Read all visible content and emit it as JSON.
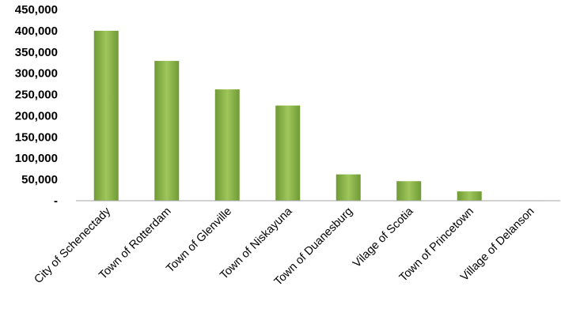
{
  "chart_data": {
    "type": "bar",
    "title": "",
    "xlabel": "",
    "ylabel": "",
    "categories": [
      "City of Schenectady",
      "Town of Rotterdam",
      "Town of Glenville",
      "Town of Niskayuna",
      "Town of Duanesburg",
      "Vilage of Scotia",
      "Town of Princetown",
      "Village of Delanson"
    ],
    "values": [
      400000,
      329000,
      262000,
      224000,
      62000,
      46000,
      22000,
      1000
    ],
    "ylim": [
      0,
      450000
    ],
    "yticks": [
      {
        "value": 0,
        "label": "-"
      },
      {
        "value": 50000,
        "label": "50,000"
      },
      {
        "value": 100000,
        "label": "100,000"
      },
      {
        "value": 150000,
        "label": "150,000"
      },
      {
        "value": 200000,
        "label": "200,000"
      },
      {
        "value": 250000,
        "label": "250,000"
      },
      {
        "value": 300000,
        "label": "300,000"
      },
      {
        "value": 350000,
        "label": "350,000"
      },
      {
        "value": 400000,
        "label": "400,000"
      },
      {
        "value": 450000,
        "label": "450,000"
      }
    ],
    "grid": false,
    "legend": "none",
    "colors": {
      "bar_light": "#9fc65b",
      "bar_dark": "#6f9a35",
      "axis": "#a6a6a6"
    }
  }
}
